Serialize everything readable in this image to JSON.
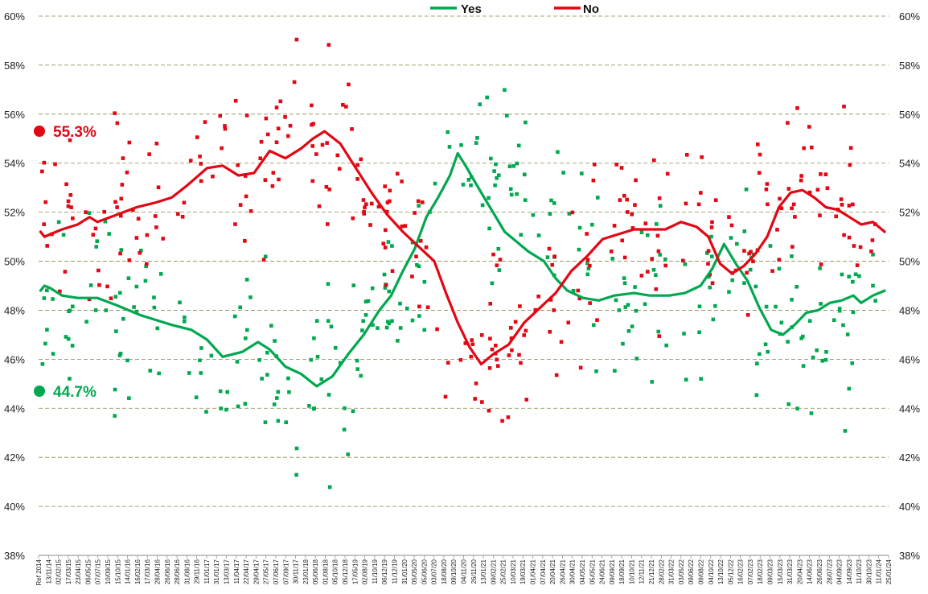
{
  "chart_data": {
    "type": "scatter",
    "title": "",
    "xlabel": "",
    "ylabel": "",
    "ylim": [
      38,
      60
    ],
    "y_ticks": [
      "38%",
      "40%",
      "42%",
      "44%",
      "46%",
      "48%",
      "50%",
      "52%",
      "54%",
      "56%",
      "58%",
      "60%"
    ],
    "grid": "horizontal dashed",
    "legend_position": "top-center",
    "x_labels": [
      "Ref 2014",
      "13/11/14",
      "02/02/15",
      "17/03/15",
      "23/04/15",
      "06/05/15",
      "07/07/15",
      "10/09/15",
      "15/10/15",
      "14/01/16",
      "16/02/16",
      "17/03/16",
      "28/04/16",
      "26/06/16",
      "28/06/16",
      "31/08/16",
      "29/11/16",
      "11/01/17",
      "31/01/17",
      "13/03/17",
      "11/04/17",
      "22/04/17",
      "29/04/17",
      "27/05/17",
      "07/06/17",
      "07/09/17",
      "30/11/17",
      "23/01/18",
      "05/06/18",
      "01/08/18",
      "05/10/18",
      "05/12/18",
      "17/05/19",
      "02/08/19",
      "11/10/19",
      "06/12/19",
      "11/12/19",
      "31/01/20",
      "05/05/20",
      "05/06/20",
      "03/07/20",
      "18/08/20",
      "09/10/20",
      "04/11/20",
      "26/11/20",
      "13/01/21",
      "09/02/21",
      "25/02/21",
      "10/03/21",
      "19/03/21",
      "01/04/21",
      "07/04/21",
      "20/04/21",
      "26/04/21",
      "30/04/21",
      "04/05/21",
      "05/05/21",
      "24/06/21",
      "09/09/21",
      "18/09/21",
      "10/10/21",
      "12/11/21",
      "21/12/21",
      "28/02/22",
      "31/03/22",
      "03/05/22",
      "09/06/22",
      "09/08/22",
      "04/10/22",
      "13/10/22",
      "05/12/22",
      "16/02/23",
      "07/02/23",
      "18/02/23",
      "09/03/23",
      "15/03/23",
      "31/03/23",
      "20/04/23",
      "14/06/23",
      "26/06/23",
      "28/07/23",
      "04/09/23",
      "14/09/23",
      "11/10/23",
      "30/10/23",
      "11/01/24",
      "25/01/24"
    ],
    "series": [
      {
        "name": "Yes",
        "color": "#00a84f",
        "current_label": "44.7%",
        "current_value": 44.7,
        "trend": [
          [
            0.05,
            48.8
          ],
          [
            0.15,
            49.0
          ],
          [
            0.3,
            48.9
          ],
          [
            0.6,
            48.6
          ],
          [
            1.0,
            48.5
          ],
          [
            1.5,
            48.5
          ],
          [
            2.0,
            48.2
          ],
          [
            2.6,
            47.8
          ],
          [
            3.0,
            47.6
          ],
          [
            3.4,
            47.4
          ],
          [
            3.9,
            47.2
          ],
          [
            4.3,
            46.8
          ],
          [
            4.7,
            46.1
          ],
          [
            5.2,
            46.3
          ],
          [
            5.6,
            46.7
          ],
          [
            5.9,
            46.4
          ],
          [
            6.3,
            45.7
          ],
          [
            6.7,
            45.4
          ],
          [
            7.1,
            44.9
          ],
          [
            7.5,
            45.3
          ],
          [
            7.9,
            46.2
          ],
          [
            8.3,
            47.0
          ],
          [
            8.7,
            48.0
          ],
          [
            9.0,
            48.6
          ],
          [
            9.3,
            49.6
          ],
          [
            9.6,
            50.5
          ],
          [
            9.9,
            51.8
          ],
          [
            10.2,
            52.6
          ],
          [
            10.5,
            53.5
          ],
          [
            10.7,
            54.4
          ],
          [
            10.9,
            53.9
          ],
          [
            11.3,
            52.8
          ],
          [
            11.6,
            52.0
          ],
          [
            11.9,
            51.2
          ],
          [
            12.2,
            50.8
          ],
          [
            12.5,
            50.4
          ],
          [
            12.9,
            50.0
          ],
          [
            13.2,
            49.3
          ],
          [
            13.5,
            48.8
          ],
          [
            13.9,
            48.5
          ],
          [
            14.3,
            48.4
          ],
          [
            14.7,
            48.6
          ],
          [
            15.2,
            48.7
          ],
          [
            15.6,
            48.6
          ],
          [
            16.1,
            48.6
          ],
          [
            16.5,
            48.7
          ],
          [
            16.9,
            49.0
          ],
          [
            17.2,
            49.7
          ],
          [
            17.5,
            50.7
          ],
          [
            17.8,
            49.9
          ],
          [
            18.1,
            49.2
          ],
          [
            18.4,
            48.1
          ],
          [
            18.7,
            47.2
          ],
          [
            19.0,
            47.0
          ],
          [
            19.3,
            47.4
          ],
          [
            19.6,
            47.9
          ],
          [
            19.9,
            48.0
          ],
          [
            20.2,
            48.3
          ],
          [
            20.5,
            48.4
          ],
          [
            20.8,
            48.6
          ],
          [
            21.0,
            48.3
          ],
          [
            21.3,
            48.6
          ],
          [
            21.6,
            48.8
          ]
        ]
      },
      {
        "name": "No",
        "color": "#e30613",
        "current_label": "55.3%",
        "current_value": 55.3,
        "trend": [
          [
            0.05,
            51.2
          ],
          [
            0.15,
            51.0
          ],
          [
            0.3,
            51.1
          ],
          [
            0.6,
            51.3
          ],
          [
            1.0,
            51.5
          ],
          [
            1.3,
            51.8
          ],
          [
            1.5,
            51.6
          ],
          [
            2.0,
            51.9
          ],
          [
            2.5,
            52.2
          ],
          [
            3.0,
            52.4
          ],
          [
            3.4,
            52.6
          ],
          [
            3.8,
            53.1
          ],
          [
            4.3,
            53.8
          ],
          [
            4.7,
            53.9
          ],
          [
            5.1,
            53.5
          ],
          [
            5.5,
            53.6
          ],
          [
            5.9,
            54.5
          ],
          [
            6.3,
            54.2
          ],
          [
            6.7,
            54.6
          ],
          [
            7.0,
            55.0
          ],
          [
            7.3,
            55.3
          ],
          [
            7.7,
            54.8
          ],
          [
            8.1,
            53.8
          ],
          [
            8.5,
            52.8
          ],
          [
            8.9,
            51.9
          ],
          [
            9.3,
            51.2
          ],
          [
            9.7,
            50.6
          ],
          [
            10.1,
            50.0
          ],
          [
            10.4,
            48.7
          ],
          [
            10.7,
            47.5
          ],
          [
            11.0,
            46.5
          ],
          [
            11.3,
            45.8
          ],
          [
            11.6,
            46.2
          ],
          [
            12.0,
            46.6
          ],
          [
            12.4,
            47.5
          ],
          [
            12.8,
            48.1
          ],
          [
            13.2,
            48.7
          ],
          [
            13.6,
            49.6
          ],
          [
            14.0,
            50.2
          ],
          [
            14.4,
            50.9
          ],
          [
            14.8,
            51.1
          ],
          [
            15.2,
            51.3
          ],
          [
            15.6,
            51.3
          ],
          [
            16.0,
            51.3
          ],
          [
            16.4,
            51.6
          ],
          [
            16.8,
            51.4
          ],
          [
            17.1,
            51.0
          ],
          [
            17.4,
            49.9
          ],
          [
            17.7,
            49.5
          ],
          [
            18.0,
            49.8
          ],
          [
            18.3,
            50.3
          ],
          [
            18.6,
            51.0
          ],
          [
            18.9,
            52.2
          ],
          [
            19.2,
            52.8
          ],
          [
            19.5,
            52.9
          ],
          [
            19.8,
            52.6
          ],
          [
            20.1,
            52.2
          ],
          [
            20.4,
            52.1
          ],
          [
            20.7,
            51.8
          ],
          [
            21.0,
            51.5
          ],
          [
            21.3,
            51.6
          ],
          [
            21.6,
            51.2
          ]
        ]
      }
    ]
  }
}
